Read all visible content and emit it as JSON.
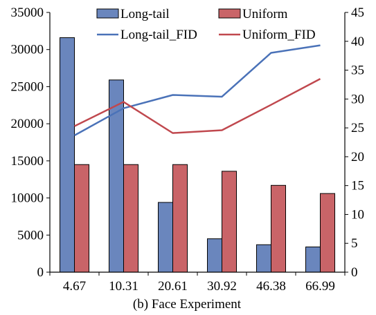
{
  "chart_data": {
    "type": "bar",
    "xlabel": "(b) Face Experiment",
    "categories": [
      "4.67",
      "10.31",
      "20.61",
      "30.92",
      "46.38",
      "66.99"
    ],
    "bar_series": [
      {
        "name": "Long-tail",
        "color": "#6a86bd",
        "values": [
          31600,
          25900,
          9400,
          4500,
          3700,
          3400
        ]
      },
      {
        "name": "Uniform",
        "color": "#c96468",
        "values": [
          14500,
          14500,
          14500,
          13600,
          11700,
          10600
        ]
      }
    ],
    "line_series": [
      {
        "name": "Long-tail_FID",
        "color": "#4a72b8",
        "axis": "right",
        "values": [
          23.7,
          28.4,
          30.7,
          30.4,
          38.0,
          39.3
        ]
      },
      {
        "name": "Uniform_FID",
        "color": "#c0484e",
        "axis": "right",
        "values": [
          25.3,
          29.5,
          24.1,
          24.6,
          29.0,
          33.5
        ]
      }
    ],
    "y_left": {
      "min": 0,
      "max": 35000,
      "ticks": [
        "0",
        "5000",
        "10000",
        "15000",
        "20000",
        "25000",
        "30000",
        "35000"
      ]
    },
    "y_right": {
      "min": 0,
      "max": 45,
      "ticks": [
        "0",
        "5",
        "10",
        "15",
        "20",
        "25",
        "30",
        "35",
        "40",
        "45"
      ]
    },
    "grid": false,
    "legend_placement": "top-center"
  }
}
